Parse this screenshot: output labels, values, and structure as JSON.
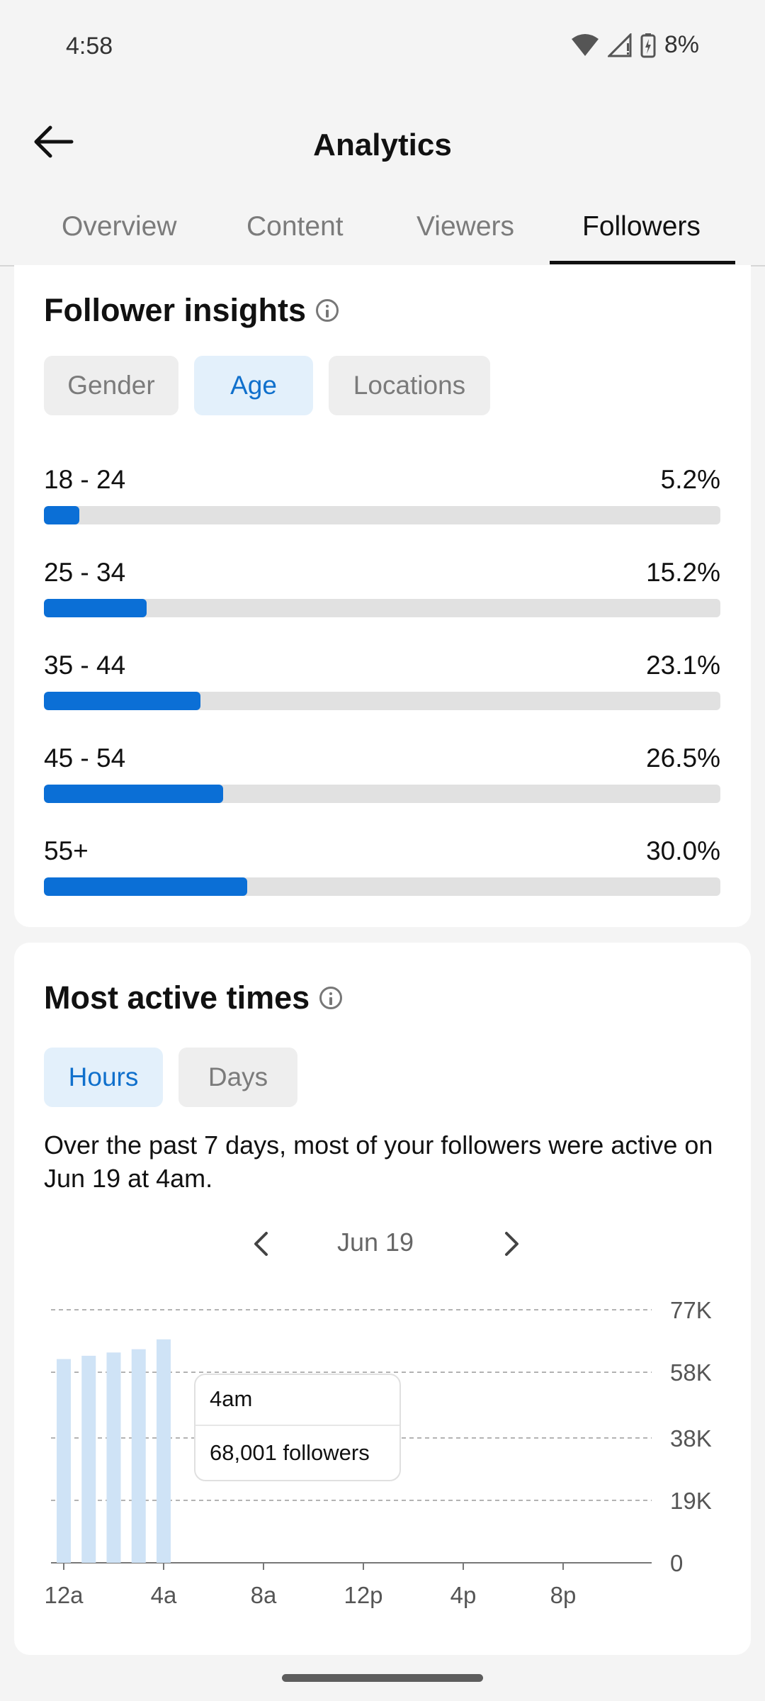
{
  "status_bar": {
    "time": "4:58",
    "battery": "8%"
  },
  "header": {
    "title": "Analytics"
  },
  "tabs": [
    {
      "label": "Overview"
    },
    {
      "label": "Content"
    },
    {
      "label": "Viewers"
    },
    {
      "label": "Followers",
      "active": true
    }
  ],
  "follower_insights": {
    "title": "Follower insights",
    "filters": [
      {
        "label": "Gender"
      },
      {
        "label": "Age",
        "active": true
      },
      {
        "label": "Locations"
      }
    ],
    "age_groups": [
      {
        "label": "18 - 24",
        "percent_text": "5.2%",
        "value": 5.2
      },
      {
        "label": "25 - 34",
        "percent_text": "15.2%",
        "value": 15.2
      },
      {
        "label": "35 - 44",
        "percent_text": "23.1%",
        "value": 23.1
      },
      {
        "label": "45 - 54",
        "percent_text": "26.5%",
        "value": 26.5
      },
      {
        "label": "55+",
        "percent_text": "30.0%",
        "value": 30.0
      }
    ]
  },
  "active_times": {
    "title": "Most active times",
    "filters": [
      {
        "label": "Hours",
        "active": true
      },
      {
        "label": "Days"
      }
    ],
    "summary": "Over the past 7 days, most of your followers were active on Jun 19 at 4am.",
    "date": "Jun 19",
    "tooltip": {
      "time": "4am",
      "value": "68,001 followers"
    }
  },
  "chart_data": {
    "type": "bar",
    "categories": [
      "12a",
      "1a",
      "2a",
      "3a",
      "4a"
    ],
    "values": [
      62000,
      63000,
      64000,
      65000,
      68001
    ],
    "x_tick_labels": [
      "12a",
      "4a",
      "8a",
      "12p",
      "4p",
      "8p"
    ],
    "y_tick_labels": [
      "0",
      "19K",
      "38K",
      "58K",
      "77K"
    ],
    "y_ticks": [
      0,
      19000,
      38000,
      58000,
      77000
    ],
    "ylim": [
      0,
      77000
    ],
    "xlim_hours": [
      0,
      24
    ],
    "grid": true,
    "bar_color": "#cfe3f6"
  },
  "colors": {
    "accent": "#0b6fd6",
    "accent_bg": "#e3f0fb"
  }
}
